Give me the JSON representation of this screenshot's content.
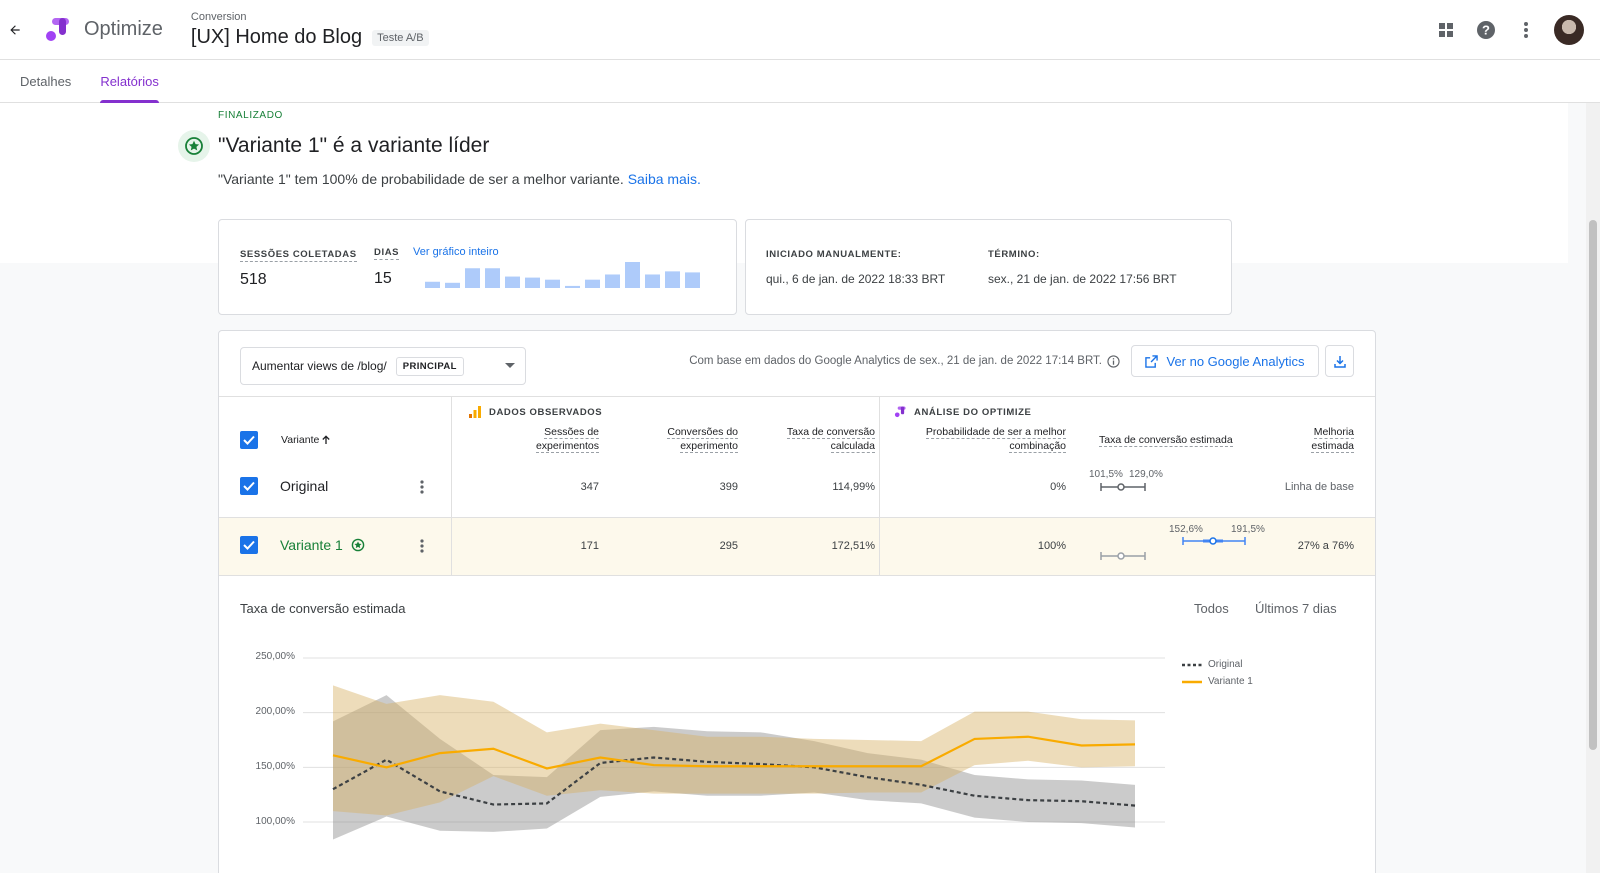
{
  "app": {
    "name": "Optimize"
  },
  "header": {
    "breadcrumb": "Conversion",
    "title": "[UX] Home do Blog",
    "badge": "Teste A/B"
  },
  "icons": {
    "back": "arrow-left-icon",
    "apps": "apps-grid-icon",
    "help": "help-icon",
    "more": "more-vert-icon"
  },
  "tabs": [
    {
      "label": "Detalhes"
    },
    {
      "label": "Relatórios",
      "active": true
    }
  ],
  "result": {
    "status": "FINALIZADO",
    "headline": "\"Variante 1\" é a variante líder",
    "description": "\"Variante 1\" tem 100% de probabilidade de ser a melhor variante.",
    "link": "Saiba mais."
  },
  "sessions_card": {
    "sessions_label": "SESSÕES COLETADAS",
    "sessions_value": "518",
    "days_label": "DIAS",
    "days_value": "15",
    "chart_link": "Ver gráfico inteiro",
    "daily_sessions": [
      6,
      5,
      19,
      19,
      11,
      10,
      8,
      2,
      8,
      13,
      25,
      13,
      16,
      15
    ]
  },
  "dates_card": {
    "start_label": "INICIADO MANUALMENTE:",
    "start_value": "qui., 6 de jan. de 2022 18:33 BRT",
    "end_label": "TÉRMINO:",
    "end_value": "sex., 21 de jan. de 2022 17:56 BRT"
  },
  "report": {
    "objective": "Aumentar views de /blog/",
    "objective_chip": "PRINCIPAL",
    "basis_text": "Com base em dados do Google Analytics de sex., 21 de jan. de 2022 17:14 BRT.",
    "ga_button": "Ver no Google Analytics",
    "observed_title": "DADOS OBSERVADOS",
    "optimize_title": "ANÁLISE DO OPTIMIZE",
    "columns": {
      "variant": "Variante",
      "sessions_1": "Sessões de",
      "sessions_2": "experimentos",
      "conversions_1": "Conversões do",
      "conversions_2": "experimento",
      "rate_1": "Taxa de conversão",
      "rate_2": "calculada",
      "prob_1": "Probabilidade de ser a melhor",
      "prob_2": "combinação",
      "estimated": "Taxa de conversão estimada",
      "improve_1": "Melhoria",
      "improve_2": "estimada"
    },
    "rows": [
      {
        "name": "Original",
        "sessions": "347",
        "conversions": "399",
        "rate": "114,99%",
        "probability": "0%",
        "ci_low": "101,5%",
        "ci_high": "129,0%",
        "improvement": "Linha de base"
      },
      {
        "name": "Variante 1",
        "sessions": "171",
        "conversions": "295",
        "rate": "172,51%",
        "probability": "100%",
        "ci_low": "152,6%",
        "ci_high": "191,5%",
        "improvement": "27% a 76%"
      }
    ]
  },
  "chart_section": {
    "title": "Taxa de conversão estimada",
    "range_all": "Todos",
    "range_7d": "Últimos 7 dias",
    "y_ticks": [
      "250,00%",
      "200,00%",
      "150,00%",
      "100,00%"
    ]
  },
  "colors": {
    "accent": "#8430ce",
    "link": "#1a73e8",
    "leader": "#188038",
    "variant": "#f9ab00",
    "original": "#5f6368"
  },
  "chart_data": {
    "type": "line",
    "ylim": [
      100,
      250
    ],
    "series": [
      {
        "name": "Original",
        "values": [
          130,
          157,
          128,
          116,
          117,
          154,
          159,
          155,
          153,
          150,
          141,
          134,
          124,
          120,
          119,
          115
        ],
        "lower": [
          84,
          105,
          92,
          91,
          94,
          123,
          128,
          124,
          124,
          127,
          120,
          117,
          104,
          100,
          99,
          95
        ],
        "upper": [
          192,
          216,
          176,
          143,
          141,
          184,
          187,
          183,
          182,
          174,
          163,
          157,
          143,
          139,
          138,
          134
        ]
      },
      {
        "name": "Variante 1",
        "values": [
          161,
          150,
          163,
          167,
          149,
          159,
          152,
          151,
          151,
          151,
          151,
          151,
          176,
          178,
          170,
          171
        ],
        "lower": [
          110,
          106,
          118,
          142,
          124,
          129,
          126,
          126,
          126,
          126,
          127,
          127,
          152,
          156,
          150,
          151
        ],
        "upper": [
          225,
          208,
          216,
          210,
          182,
          190,
          184,
          178,
          178,
          176,
          175,
          174,
          201,
          201,
          194,
          193
        ]
      }
    ]
  }
}
